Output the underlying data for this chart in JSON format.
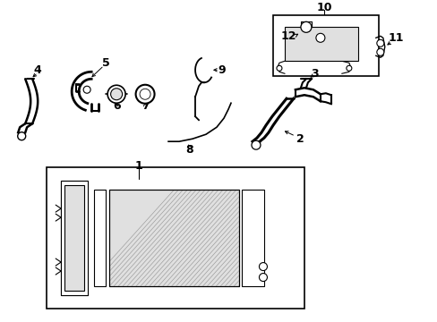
{
  "background_color": "#ffffff",
  "line_color": "#000000",
  "gray_fill": "#cccccc",
  "light_gray": "#e0e0e0",
  "mid_gray": "#999999",
  "dark_gray": "#555555",
  "fig_width": 4.89,
  "fig_height": 3.6,
  "dpi": 100
}
